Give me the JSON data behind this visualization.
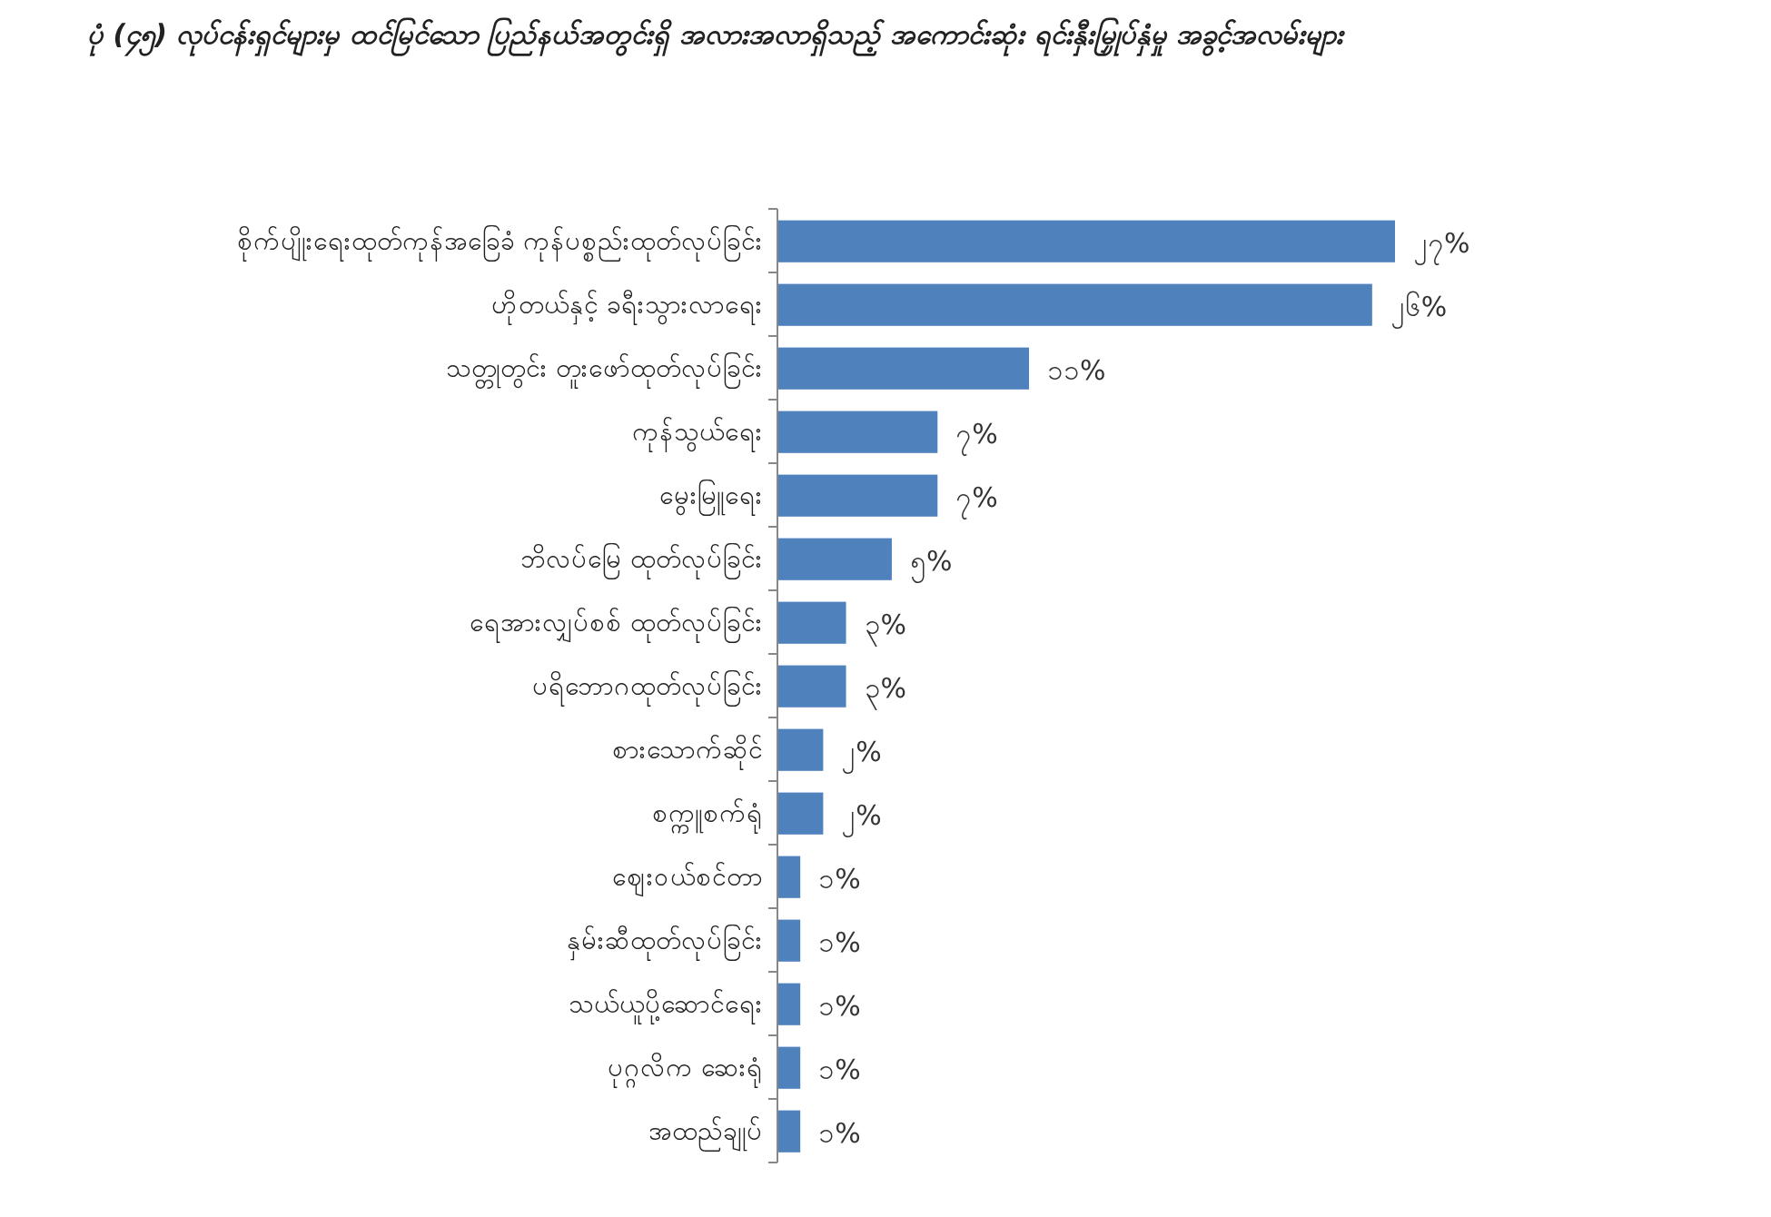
{
  "chart_data": {
    "type": "bar",
    "orientation": "horizontal",
    "title": "ပုံ (၄၅) လုပ်ငန်းရှင်များမှ ထင်မြင်သော ပြည်နယ်အတွင်းရှိ အလားအလာရှိသည့် အကောင်းဆုံး ရင်းနှီးမြှုပ်နှံမှု အခွင့်အလမ်းများ",
    "categories": [
      "စိုက်ပျိုးရေးထုတ်ကုန်အခြေခံ ကုန်ပစ္စည်းထုတ်လုပ်ခြင်း",
      "ဟိုတယ်နှင့် ခရီးသွားလာရေး",
      "သတ္တုတွင်း တူးဖော်ထုတ်လုပ်ခြင်း",
      "ကုန်သွယ်ရေး",
      "မွေးမြူရေး",
      "ဘိလပ်မြေ ထုတ်လုပ်ခြင်း",
      "ရေအားလျှပ်စစ် ထုတ်လုပ်ခြင်း",
      "ပရိဘောဂထုတ်လုပ်ခြင်း",
      "စားသောက်ဆိုင်",
      "စက္ကူစက်ရုံ",
      "ဈေးဝယ်စင်တာ",
      "နှမ်းဆီထုတ်လုပ်ခြင်း",
      "သယ်ယူပို့ဆောင်ရေး",
      "ပုဂ္ဂလိက ဆေးရုံ",
      "အထည်ချုပ်"
    ],
    "values": [
      27,
      26,
      11,
      7,
      7,
      5,
      3,
      3,
      2,
      2,
      1,
      1,
      1,
      1,
      1
    ],
    "value_labels": [
      "၂၇%",
      "၂၆%",
      "၁၁%",
      "၇%",
      "၇%",
      "၅%",
      "၃%",
      "၃%",
      "၂%",
      "၂%",
      "၁%",
      "၁%",
      "၁%",
      "၁%",
      "၁%"
    ],
    "color": "#4f81bd"
  }
}
